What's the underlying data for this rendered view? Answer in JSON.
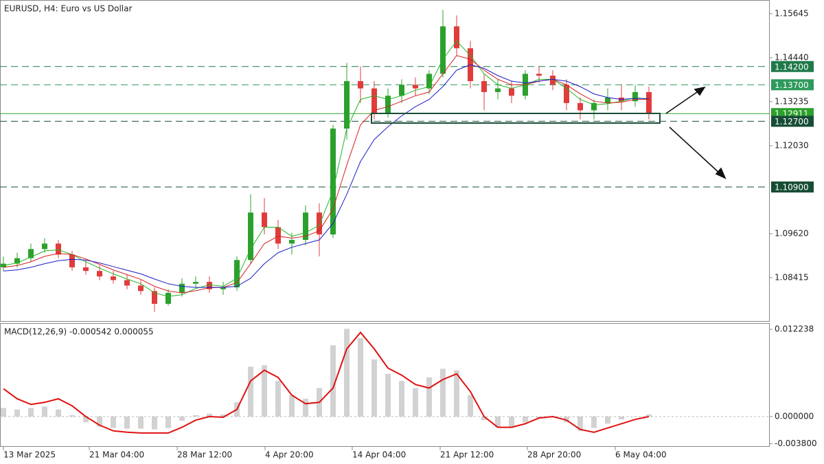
{
  "chart_data": [
    {
      "type": "candlestick",
      "title": "EURUSD, H4:  Euro vs US Dollar",
      "xlim": [
        0,
        55.75
      ],
      "xticks": [
        {
          "value": 0,
          "label": "13 Mar 2025"
        },
        {
          "value": 6.25,
          "label": "21 Mar 04:00"
        },
        {
          "value": 12.65,
          "label": "28 Mar 12:00"
        },
        {
          "value": 19.05,
          "label": "4 Apr 20:00"
        },
        {
          "value": 25.4,
          "label": "14 Apr 04:00"
        },
        {
          "value": 31.8,
          "label": "21 Apr 12:00"
        },
        {
          "value": 38.15,
          "label": "28 Apr 20:00"
        },
        {
          "value": 44.55,
          "label": "6 May 04:00"
        }
      ],
      "ylim": [
        1.07229,
        1.16022
      ],
      "yticks": [
        {
          "value": 1.15645,
          "label": "1.15645"
        },
        {
          "value": 1.1444,
          "label": "1.14440"
        },
        {
          "value": 1.13235,
          "label": "1.13235"
        },
        {
          "value": 1.1203,
          "label": "1.12030"
        },
        {
          "value": 1.0962,
          "label": "1.09620"
        },
        {
          "value": 1.08415,
          "label": "1.08415"
        }
      ],
      "up_color": "#2ca02c",
      "down_color": "#e03c3c",
      "open": [
        1.087,
        1.088,
        1.0895,
        1.092,
        1.0935,
        1.0905,
        1.087,
        1.086,
        1.0845,
        1.0835,
        1.082,
        1.0805,
        1.077,
        1.08,
        1.0825,
        1.083,
        1.081,
        1.0815,
        1.089,
        1.102,
        1.098,
        1.0935,
        1.0945,
        1.102,
        1.096,
        1.125,
        1.138,
        1.136,
        1.129,
        1.134,
        1.137,
        1.136,
        1.14,
        1.153,
        1.147,
        1.138,
        1.135,
        1.136,
        1.134,
        1.14,
        1.1395,
        1.137,
        1.132,
        1.13,
        1.132,
        1.1335,
        1.1325,
        1.135
      ],
      "high": [
        1.09,
        1.091,
        1.0935,
        1.095,
        1.0945,
        1.0915,
        1.089,
        1.0875,
        1.086,
        1.085,
        1.0835,
        1.0815,
        1.081,
        1.084,
        1.0845,
        1.0845,
        1.083,
        1.09,
        1.107,
        1.106,
        1.1,
        1.0965,
        1.104,
        1.1045,
        1.126,
        1.143,
        1.142,
        1.138,
        1.136,
        1.1385,
        1.139,
        1.141,
        1.1575,
        1.156,
        1.149,
        1.14,
        1.1385,
        1.138,
        1.141,
        1.142,
        1.141,
        1.1385,
        1.1335,
        1.133,
        1.136,
        1.137,
        1.137,
        1.1365
      ],
      "low": [
        1.086,
        1.087,
        1.0885,
        1.091,
        1.0895,
        1.086,
        1.085,
        1.0835,
        1.0825,
        1.081,
        1.0795,
        1.0748,
        1.0765,
        1.079,
        1.0815,
        1.08,
        1.0795,
        1.0805,
        1.088,
        1.096,
        1.092,
        1.0905,
        1.093,
        1.09,
        1.095,
        1.122,
        1.132,
        1.1275,
        1.128,
        1.132,
        1.134,
        1.1345,
        1.139,
        1.145,
        1.136,
        1.13,
        1.133,
        1.132,
        1.133,
        1.1375,
        1.1355,
        1.13,
        1.1275,
        1.1275,
        1.13,
        1.13,
        1.131,
        1.1275
      ],
      "close": [
        1.088,
        1.0895,
        1.092,
        1.0935,
        1.0905,
        1.087,
        1.086,
        1.0845,
        1.0835,
        1.082,
        1.0805,
        1.077,
        1.08,
        1.0825,
        1.083,
        1.081,
        1.0815,
        1.089,
        1.102,
        1.098,
        1.0935,
        1.0945,
        1.102,
        1.096,
        1.125,
        1.138,
        1.136,
        1.129,
        1.134,
        1.137,
        1.136,
        1.14,
        1.153,
        1.147,
        1.138,
        1.135,
        1.136,
        1.134,
        1.14,
        1.1395,
        1.137,
        1.132,
        1.13,
        1.132,
        1.1335,
        1.1325,
        1.135,
        1.1291
      ],
      "series": [
        {
          "color": "#22b522",
          "values": [
            1.0875,
            1.0882,
            1.0898,
            1.0915,
            1.0918,
            1.0905,
            1.0885,
            1.0868,
            1.0852,
            1.0838,
            1.0825,
            1.08,
            1.079,
            1.0795,
            1.0812,
            1.0822,
            1.0818,
            1.084,
            1.092,
            1.098,
            1.098,
            1.0955,
            1.0965,
            1.0985,
            1.108,
            1.125,
            1.133,
            1.134,
            1.133,
            1.134,
            1.1355,
            1.1365,
            1.144,
            1.149,
            1.145,
            1.14,
            1.137,
            1.136,
            1.137,
            1.1385,
            1.1385,
            1.136,
            1.133,
            1.1315,
            1.1318,
            1.1325,
            1.1335,
            1.133
          ]
        },
        {
          "color": "#d62020",
          "values": [
            1.087,
            1.0875,
            1.0885,
            1.09,
            1.0908,
            1.0905,
            1.0893,
            1.0878,
            1.0863,
            1.085,
            1.0837,
            1.0818,
            1.0805,
            1.08,
            1.0806,
            1.0814,
            1.0815,
            1.0828,
            1.088,
            1.0935,
            1.0955,
            1.095,
            1.0955,
            1.097,
            1.103,
            1.115,
            1.126,
            1.13,
            1.131,
            1.1325,
            1.134,
            1.135,
            1.14,
            1.145,
            1.144,
            1.141,
            1.1385,
            1.137,
            1.137,
            1.138,
            1.1385,
            1.137,
            1.1345,
            1.1325,
            1.132,
            1.1322,
            1.133,
            1.133
          ]
        },
        {
          "color": "#1c1cc8",
          "values": [
            1.086,
            1.0863,
            1.087,
            1.088,
            1.0888,
            1.0892,
            1.089,
            1.0882,
            1.0872,
            1.0862,
            1.0852,
            1.0838,
            1.0825,
            1.0818,
            1.0815,
            1.0815,
            1.0815,
            1.0818,
            1.084,
            1.088,
            1.091,
            1.0925,
            1.0935,
            1.0945,
            1.099,
            1.107,
            1.116,
            1.122,
            1.1255,
            1.1285,
            1.131,
            1.133,
            1.1365,
            1.141,
            1.1425,
            1.1415,
            1.1395,
            1.138,
            1.1375,
            1.138,
            1.1385,
            1.138,
            1.1365,
            1.1345,
            1.1335,
            1.133,
            1.1333,
            1.1332
          ]
        }
      ],
      "levels": [
        {
          "value": 1.142,
          "label": "1.14200",
          "color": "#1f7a4a",
          "style": "dashed"
        },
        {
          "value": 1.137,
          "label": "1.13700",
          "color": "#2e9a5c",
          "style": "dashed"
        },
        {
          "value": 1.12911,
          "label": "1.12911",
          "color": "#2ca02c",
          "style": "solid"
        },
        {
          "value": 1.127,
          "label": "1.12700",
          "color": "#174d35",
          "style": "dashed"
        },
        {
          "value": 1.109,
          "label": "1.10900",
          "color": "#174d35",
          "style": "dashed"
        }
      ]
    },
    {
      "type": "macd",
      "title": "MACD(12,26,9) -0.000542 0.000055",
      "ylim": [
        -0.00424,
        0.01311
      ],
      "yticks": [
        0.012238,
        {
          "value": 0,
          "label": "0.000000"
        },
        {
          "value": -0.0038,
          "label": "-0.003800"
        }
      ],
      "histogram": {
        "color": "#b4b4b4",
        "values": [
          0.0012,
          0.001,
          0.0012,
          0.0014,
          0.001,
          0.0002,
          -0.0008,
          -0.0014,
          -0.0016,
          -0.0017,
          -0.0017,
          -0.0018,
          -0.0016,
          -0.0006,
          0.0002,
          0.0004,
          0.0003,
          0.002,
          0.007,
          0.0072,
          0.005,
          0.003,
          0.0025,
          0.004,
          0.01,
          0.0123,
          0.011,
          0.008,
          0.006,
          0.005,
          0.004,
          0.0055,
          0.0067,
          0.0065,
          0.003,
          -0.0005,
          -0.0015,
          -0.0014,
          -0.0008,
          -0.0002,
          0.0,
          -0.0008,
          -0.002,
          -0.0016,
          -0.001,
          -0.0004,
          0.0,
          0.0003
        ]
      },
      "signal": {
        "color": "#e01010",
        "values": [
          0.0039,
          0.0025,
          0.0017,
          0.002,
          0.0025,
          0.0015,
          0.0,
          -0.0012,
          -0.002,
          -0.0022,
          -0.0023,
          -0.0023,
          -0.0023,
          -0.0015,
          -0.0005,
          0.0,
          -0.0001,
          0.001,
          0.005,
          0.0065,
          0.0055,
          0.003,
          0.0018,
          0.002,
          0.004,
          0.0095,
          0.0118,
          0.0095,
          0.0068,
          0.0058,
          0.0045,
          0.004,
          0.0052,
          0.006,
          0.0035,
          0.0,
          -0.0015,
          -0.0015,
          -0.001,
          -0.0002,
          0.0,
          -0.0005,
          -0.0018,
          -0.0022,
          -0.0016,
          -0.001,
          -0.0004,
          0.0
        ]
      }
    }
  ]
}
